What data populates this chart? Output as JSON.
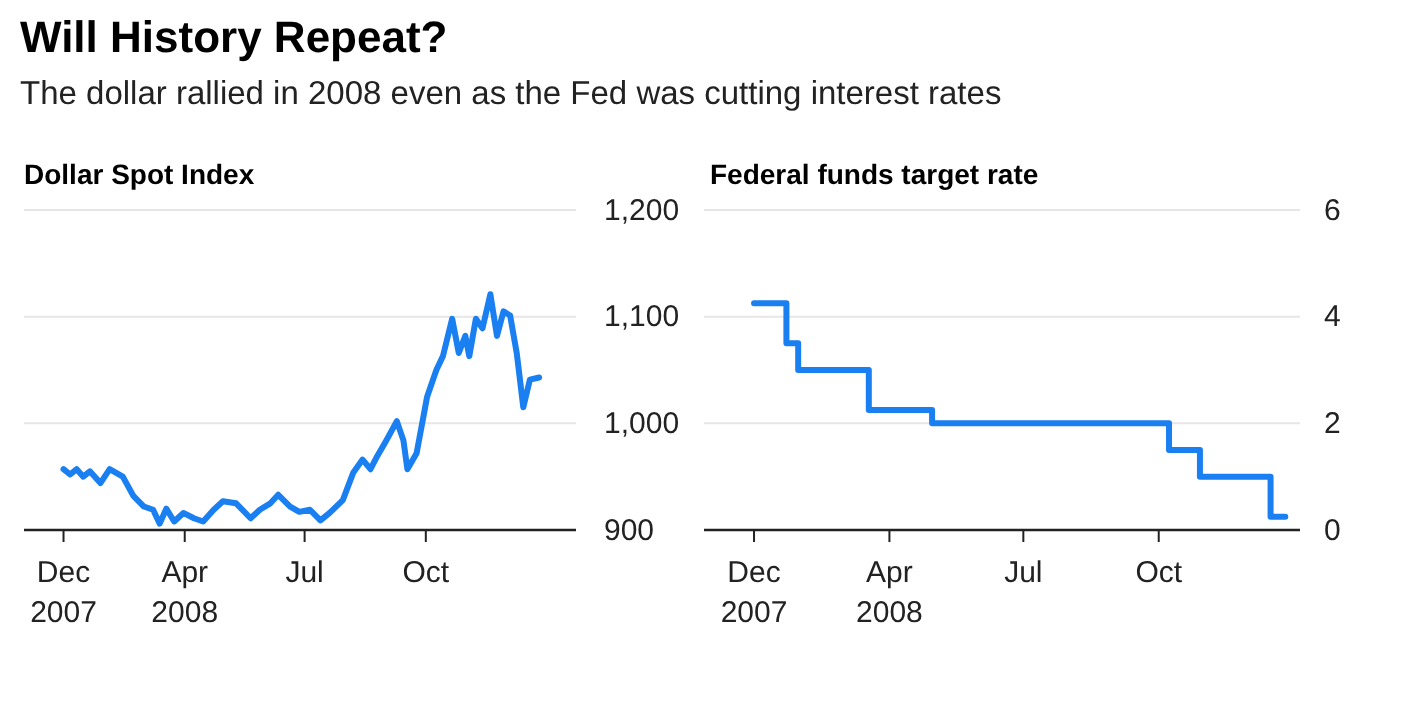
{
  "chart_data": [
    {
      "type": "line",
      "title": "Will History Repeat?",
      "subtitle": "The dollar rallied in 2008 even as the Fed was cutting interest rates",
      "ylabel": "Dollar Spot Index",
      "x": [
        "2007-12-31",
        "2008-01-05",
        "2008-01-10",
        "2008-01-15",
        "2008-01-20",
        "2008-01-28",
        "2008-02-04",
        "2008-02-14",
        "2008-02-22",
        "2008-03-01",
        "2008-03-08",
        "2008-03-13",
        "2008-03-18",
        "2008-03-24",
        "2008-03-31",
        "2008-04-08",
        "2008-04-15",
        "2008-04-23",
        "2008-04-30",
        "2008-05-10",
        "2008-05-21",
        "2008-05-28",
        "2008-06-05",
        "2008-06-11",
        "2008-06-20",
        "2008-06-27",
        "2008-07-05",
        "2008-07-13",
        "2008-07-20",
        "2008-07-30",
        "2008-08-07",
        "2008-08-14",
        "2008-08-20",
        "2008-08-25",
        "2008-09-01",
        "2008-09-09",
        "2008-09-14",
        "2008-09-17",
        "2008-09-24",
        "2008-10-02",
        "2008-10-09",
        "2008-10-14",
        "2008-10-21",
        "2008-10-26",
        "2008-10-31",
        "2008-11-03",
        "2008-11-08",
        "2008-11-13",
        "2008-11-19",
        "2008-11-24",
        "2008-11-29",
        "2008-12-04",
        "2008-12-09",
        "2008-12-14",
        "2008-12-19",
        "2008-12-26"
      ],
      "series": [
        {
          "color": "#1a7ff0",
          "values": [
            957,
            952,
            957,
            950,
            955,
            944,
            957,
            950,
            932,
            922,
            919,
            906,
            920,
            908,
            916,
            911,
            908,
            919,
            927,
            925,
            911,
            919,
            925,
            933,
            922,
            917,
            919,
            909,
            916,
            928,
            954,
            966,
            957,
            969,
            984,
            1002,
            984,
            957,
            972,
            1025,
            1050,
            1063,
            1098,
            1066,
            1082,
            1063,
            1098,
            1089,
            1121,
            1082,
            1105,
            1101,
            1066,
            1015,
            1041,
            1043
          ]
        }
      ],
      "xlim": [
        "2007-12-01",
        "2009-01-23"
      ],
      "xticks": [
        {
          "value": "2007-12-31",
          "label": "Dec\n2007"
        },
        {
          "value": "2008-04-01",
          "label": "Apr\n2008"
        },
        {
          "value": "2008-07-01",
          "label": "Jul"
        },
        {
          "value": "2008-10-01",
          "label": "Oct"
        }
      ],
      "ylim": [
        900,
        1200
      ],
      "yticks": [
        {
          "value": 900,
          "label": "900"
        },
        {
          "value": 1000,
          "label": "1,000"
        },
        {
          "value": 1100,
          "label": "1,100"
        },
        {
          "value": 1200,
          "label": "1,200"
        }
      ],
      "grid": "y"
    },
    {
      "type": "step",
      "ylabel": "Federal funds target rate",
      "x": [
        "2007-12-31",
        "2008-01-22",
        "2008-01-30",
        "2008-03-18",
        "2008-04-30",
        "2008-10-08",
        "2008-10-29",
        "2008-12-16",
        "2008-12-26"
      ],
      "series": [
        {
          "color": "#1a7ff0",
          "values": [
            4.25,
            3.5,
            3.0,
            2.25,
            2.0,
            1.5,
            1.0,
            0.25,
            0.25
          ]
        }
      ],
      "xlim": [
        "2007-11-27",
        "2009-01-05"
      ],
      "xticks": [
        {
          "value": "2007-12-31",
          "label": "Dec\n2007"
        },
        {
          "value": "2008-04-01",
          "label": "Apr\n2008"
        },
        {
          "value": "2008-07-01",
          "label": "Jul"
        },
        {
          "value": "2008-10-01",
          "label": "Oct"
        }
      ],
      "ylim": [
        0,
        6
      ],
      "yticks": [
        0,
        2,
        4,
        6
      ],
      "grid": "y"
    }
  ]
}
